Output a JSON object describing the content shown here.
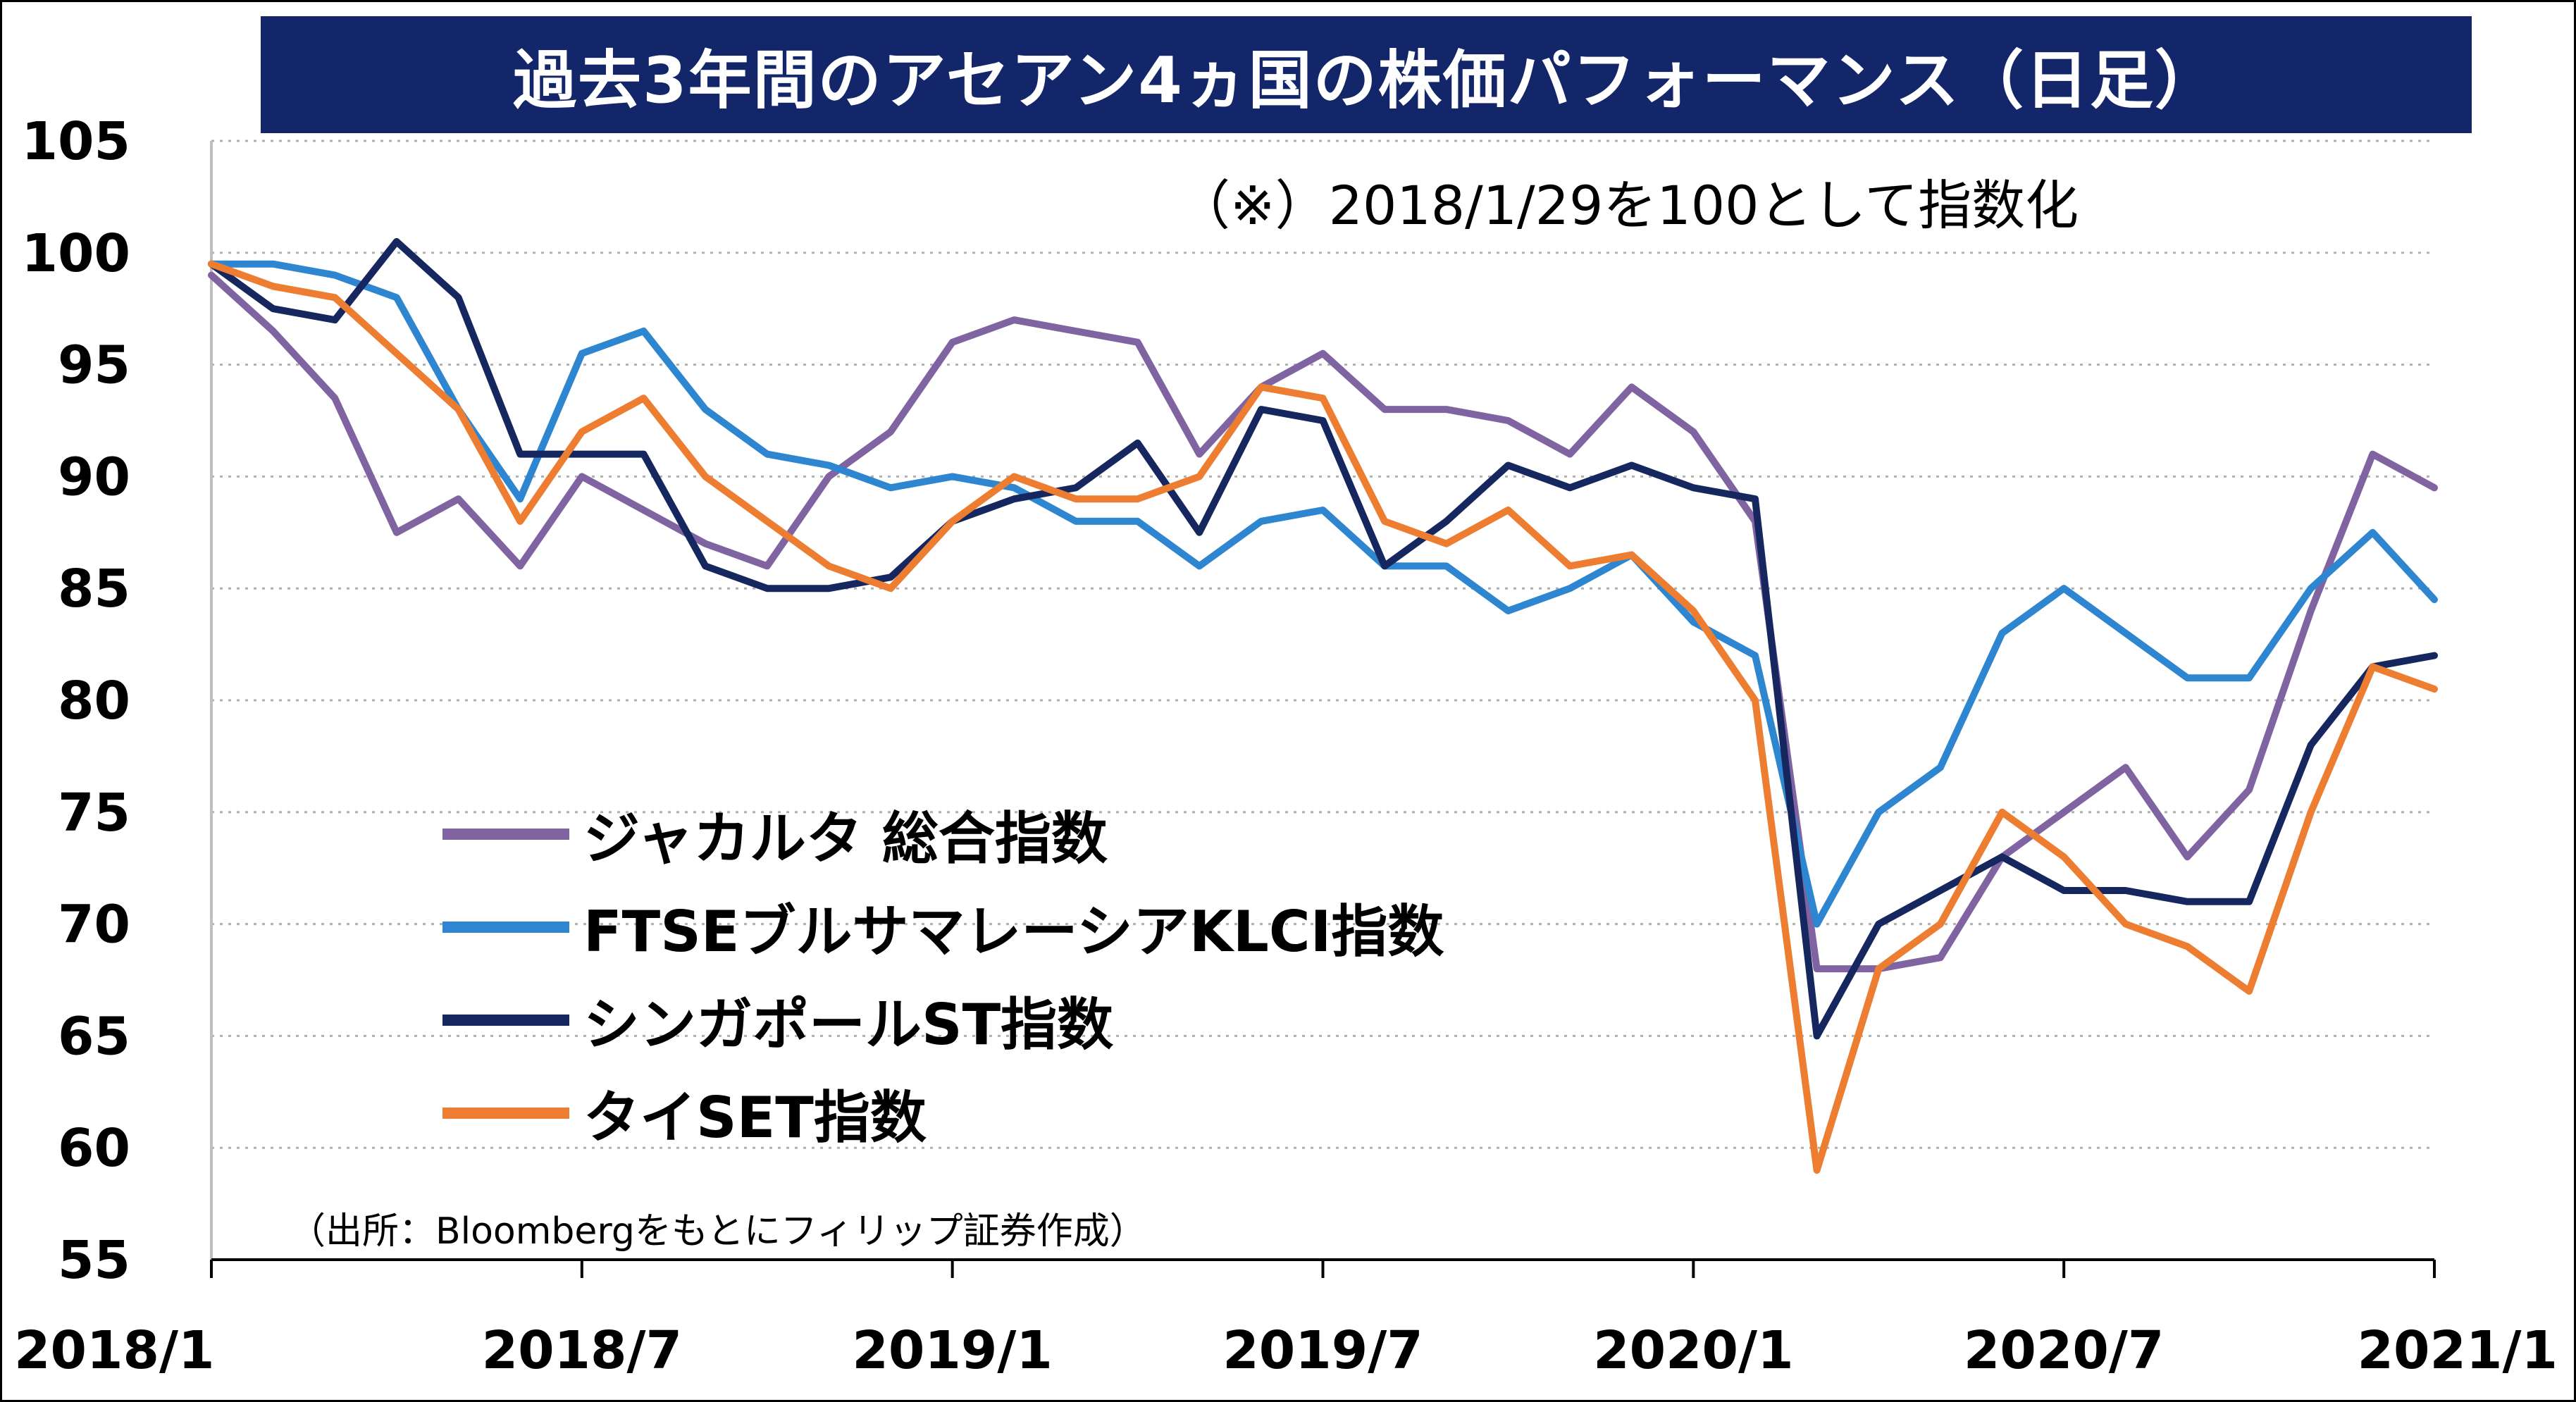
{
  "chart_data": {
    "type": "line",
    "title": "過去3年間のアセアン4ヵ国の株価パフォーマンス（日足）",
    "note": "（※）2018/1/29を100として指数化",
    "source": "（出所：Bloombergをもとにフィリップ証券作成）",
    "ylim": [
      55,
      105
    ],
    "yticks": [
      "105",
      "100",
      "95",
      "90",
      "85",
      "80",
      "75",
      "70",
      "65",
      "60",
      "55"
    ],
    "xlim": [
      "2018/1",
      "2021/1"
    ],
    "xticks": [
      "2018/1",
      "2018/7",
      "2019/1",
      "2019/7",
      "2020/1",
      "2020/7",
      "2021/1"
    ],
    "grid": true,
    "legend_position": "lower-left",
    "x": [
      "2018/1",
      "2018/2",
      "2018/3",
      "2018/4",
      "2018/5",
      "2018/6",
      "2018/7",
      "2018/8",
      "2018/9",
      "2018/10",
      "2018/11",
      "2018/12",
      "2019/1",
      "2019/2",
      "2019/3",
      "2019/4",
      "2019/5",
      "2019/6",
      "2019/7",
      "2019/8",
      "2019/9",
      "2019/10",
      "2019/11",
      "2019/12",
      "2020/1",
      "2020/2",
      "2020/3",
      "2020/4",
      "2020/5",
      "2020/6",
      "2020/7",
      "2020/8",
      "2020/9",
      "2020/10",
      "2020/11",
      "2020/12",
      "2021/1"
    ],
    "series": [
      {
        "name": "ジャカルタ 総合指数",
        "color": "#8064a2",
        "values": [
          99.0,
          96.5,
          93.5,
          87.5,
          89.0,
          86.0,
          90.0,
          88.5,
          87.0,
          86.0,
          90.0,
          92.0,
          96.0,
          97.0,
          96.5,
          96.0,
          91.0,
          94.0,
          95.5,
          93.0,
          93.0,
          92.5,
          91.0,
          94.0,
          92.0,
          88.0,
          68.0,
          68.0,
          68.5,
          73.0,
          75.0,
          77.0,
          73.0,
          76.0,
          84.0,
          91.0,
          89.5
        ]
      },
      {
        "name": "FTSEブルサマレーシアKLCI指数",
        "color": "#2e86d0",
        "values": [
          99.5,
          99.5,
          99.0,
          98.0,
          93.0,
          89.0,
          95.5,
          96.5,
          93.0,
          91.0,
          90.5,
          89.5,
          90.0,
          89.5,
          88.0,
          88.0,
          86.0,
          88.0,
          88.5,
          86.0,
          86.0,
          84.0,
          85.0,
          86.5,
          83.5,
          82.0,
          70.0,
          75.0,
          77.0,
          83.0,
          85.0,
          83.0,
          81.0,
          81.0,
          85.0,
          87.5,
          84.5
        ]
      },
      {
        "name": "シンガポールST指数",
        "color": "#16275f",
        "values": [
          99.5,
          97.5,
          97.0,
          100.5,
          98.0,
          91.0,
          91.0,
          91.0,
          86.0,
          85.0,
          85.0,
          85.5,
          88.0,
          89.0,
          89.5,
          91.5,
          87.5,
          93.0,
          92.5,
          86.0,
          88.0,
          90.5,
          89.5,
          90.5,
          89.5,
          89.0,
          65.0,
          70.0,
          71.5,
          73.0,
          71.5,
          71.5,
          71.0,
          71.0,
          78.0,
          81.5,
          82.0
        ]
      },
      {
        "name": "タイSET指数",
        "color": "#ed7d31",
        "values": [
          99.5,
          98.5,
          98.0,
          95.5,
          93.0,
          88.0,
          92.0,
          93.5,
          90.0,
          88.0,
          86.0,
          85.0,
          88.0,
          90.0,
          89.0,
          89.0,
          90.0,
          94.0,
          93.5,
          88.0,
          87.0,
          88.5,
          86.0,
          86.5,
          84.0,
          80.0,
          59.0,
          68.0,
          70.0,
          75.0,
          73.0,
          70.0,
          69.0,
          67.0,
          75.0,
          81.5,
          80.5
        ]
      }
    ]
  }
}
